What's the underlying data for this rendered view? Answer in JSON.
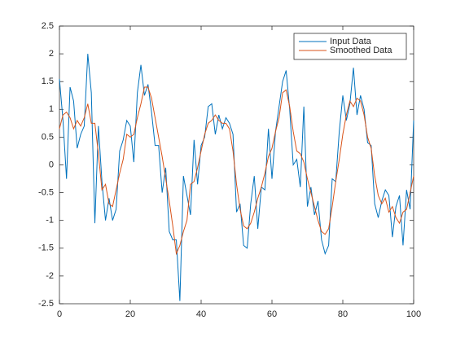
{
  "chart_data": {
    "type": "line",
    "x": [
      0,
      1,
      2,
      3,
      4,
      5,
      6,
      7,
      8,
      9,
      10,
      11,
      12,
      13,
      14,
      15,
      16,
      17,
      18,
      19,
      20,
      21,
      22,
      23,
      24,
      25,
      26,
      27,
      28,
      29,
      30,
      31,
      32,
      33,
      34,
      35,
      36,
      37,
      38,
      39,
      40,
      41,
      42,
      43,
      44,
      45,
      46,
      47,
      48,
      49,
      50,
      51,
      52,
      53,
      54,
      55,
      56,
      57,
      58,
      59,
      60,
      61,
      62,
      63,
      64,
      65,
      66,
      67,
      68,
      69,
      70,
      71,
      72,
      73,
      74,
      75,
      76,
      77,
      78,
      79,
      80,
      81,
      82,
      83,
      84,
      85,
      86,
      87,
      88,
      89,
      90,
      91,
      92,
      93,
      94,
      95,
      96,
      97,
      98,
      99,
      100
    ],
    "series": [
      {
        "name": "Input Data",
        "color": "#0072bd",
        "values": [
          1.55,
          0.8,
          -0.25,
          1.4,
          1.15,
          0.3,
          0.55,
          0.7,
          2.0,
          1.3,
          -1.05,
          0.7,
          -0.3,
          -1.0,
          -0.6,
          -1.0,
          -0.8,
          0.25,
          0.45,
          0.8,
          0.7,
          0.05,
          1.3,
          1.8,
          1.25,
          1.45,
          0.95,
          0.35,
          0.35,
          -0.5,
          -0.05,
          -1.2,
          -1.35,
          -1.35,
          -2.45,
          -0.2,
          -0.55,
          -0.9,
          0.45,
          -0.35,
          0.35,
          0.5,
          1.05,
          1.1,
          0.55,
          0.9,
          0.65,
          0.85,
          0.75,
          0.55,
          -0.85,
          -0.7,
          -1.45,
          -1.5,
          -0.7,
          -0.2,
          -1.15,
          -0.4,
          -0.45,
          0.65,
          -0.25,
          0.6,
          1.05,
          1.5,
          1.7,
          1.0,
          0.0,
          0.1,
          -0.4,
          1.05,
          -0.75,
          -0.4,
          -0.9,
          -0.65,
          -1.35,
          -1.6,
          -1.45,
          -0.25,
          -0.3,
          0.6,
          1.25,
          0.8,
          1.1,
          1.75,
          0.9,
          1.25,
          1.0,
          0.4,
          0.35,
          -0.7,
          -0.95,
          -0.65,
          -0.45,
          -0.55,
          -1.3,
          -0.75,
          -0.55,
          -1.45,
          -0.45,
          -0.8,
          0.8
        ]
      },
      {
        "name": "Smoothed Data",
        "color": "#d95319",
        "values": [
          0.65,
          0.9,
          0.95,
          0.85,
          0.65,
          0.8,
          0.7,
          0.85,
          1.1,
          0.75,
          0.75,
          0.2,
          -0.45,
          -0.35,
          -0.7,
          -0.75,
          -0.45,
          -0.15,
          0.1,
          0.55,
          0.5,
          0.55,
          0.85,
          1.1,
          1.4,
          1.4,
          1.2,
          0.85,
          0.5,
          0.15,
          -0.25,
          -0.65,
          -1.1,
          -1.6,
          -1.45,
          -1.2,
          -1.0,
          -0.35,
          -0.3,
          -0.05,
          0.25,
          0.55,
          0.75,
          0.8,
          0.9,
          0.8,
          0.75,
          0.75,
          0.65,
          0.25,
          -0.35,
          -0.8,
          -1.1,
          -1.15,
          -1.05,
          -0.85,
          -0.6,
          -0.4,
          -0.15,
          0.15,
          0.3,
          0.6,
          0.85,
          1.3,
          1.35,
          1.05,
          0.6,
          0.25,
          0.2,
          0.05,
          -0.25,
          -0.5,
          -0.75,
          -1.0,
          -1.2,
          -1.25,
          -1.15,
          -0.75,
          -0.3,
          0.1,
          0.55,
          0.9,
          1.15,
          1.05,
          1.2,
          1.15,
          0.9,
          0.5,
          0.3,
          -0.2,
          -0.55,
          -0.7,
          -0.6,
          -0.85,
          -0.75,
          -0.95,
          -1.05,
          -0.85,
          -0.8,
          -0.5,
          -0.2
        ]
      }
    ],
    "xlim": [
      0,
      100
    ],
    "xticks": [
      0,
      20,
      40,
      60,
      80,
      100
    ],
    "ylim": [
      -2.5,
      2.5
    ],
    "yticks": [
      -2.5,
      -2,
      -1.5,
      -1,
      -0.5,
      0,
      0.5,
      1,
      1.5,
      2,
      2.5
    ],
    "grid": false,
    "legend": "northeast"
  }
}
